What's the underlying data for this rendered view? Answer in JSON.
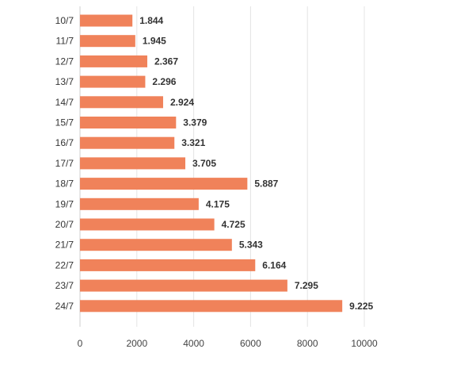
{
  "chart_data": {
    "type": "bar",
    "orientation": "horizontal",
    "categories": [
      "10/7",
      "11/7",
      "12/7",
      "13/7",
      "14/7",
      "15/7",
      "16/7",
      "17/7",
      "18/7",
      "19/7",
      "20/7",
      "21/7",
      "22/7",
      "23/7",
      "24/7"
    ],
    "values": [
      1844,
      1945,
      2367,
      2296,
      2924,
      3379,
      3321,
      3705,
      5887,
      4175,
      4725,
      5343,
      6164,
      7295,
      9225
    ],
    "value_labels": [
      "1.844",
      "1.945",
      "2.367",
      "2.296",
      "2.924",
      "3.379",
      "3.321",
      "3.705",
      "5.887",
      "4.175",
      "4.725",
      "5.343",
      "6.164",
      "7.295",
      "9.225"
    ],
    "x_ticks": [
      0,
      2000,
      4000,
      6000,
      8000,
      10000
    ],
    "xlim": [
      0,
      10000
    ],
    "grid": true,
    "bar_color": "#f0825a",
    "title": "",
    "xlabel": "",
    "ylabel": ""
  }
}
